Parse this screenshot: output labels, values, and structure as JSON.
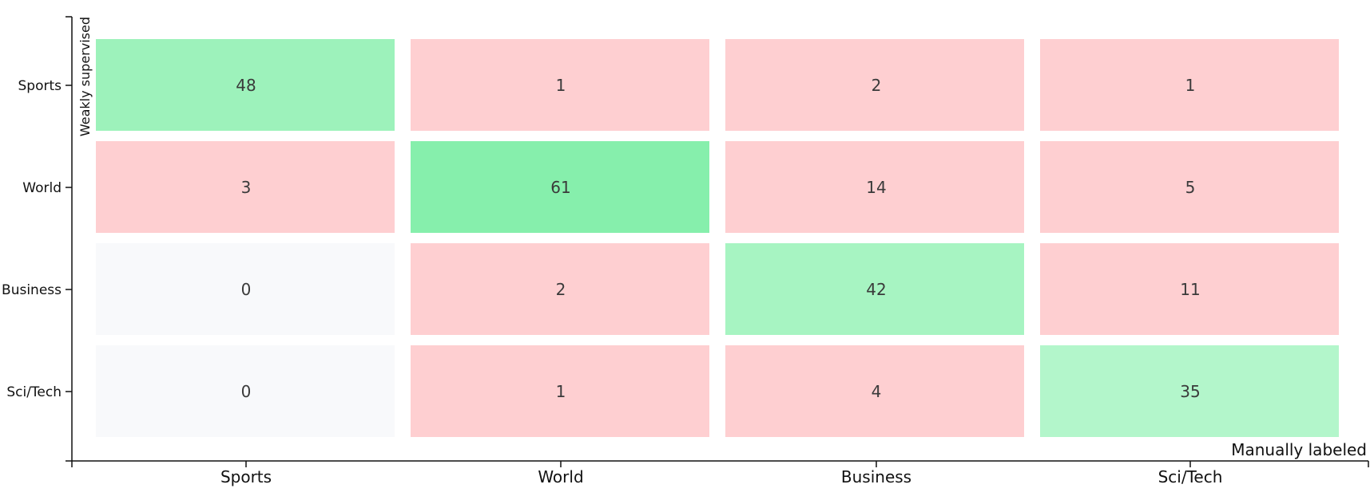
{
  "chart_data": {
    "type": "heatmap",
    "title": "",
    "xlabel": "Manually labeled",
    "ylabel": "Weakly supervised",
    "x_categories": [
      "Sports",
      "World",
      "Business",
      "Sci/Tech"
    ],
    "y_categories": [
      "Sports",
      "World",
      "Business",
      "Sci/Tech"
    ],
    "values": [
      [
        48,
        1,
        2,
        1
      ],
      [
        3,
        61,
        14,
        5
      ],
      [
        0,
        2,
        42,
        11
      ],
      [
        0,
        1,
        4,
        35
      ]
    ],
    "colors": {
      "diagonal_strong": "#86efac",
      "diagonal_light": "#bbf7d0",
      "off_diagonal": "#fecfd1",
      "zero": "#f8f9fb"
    }
  }
}
